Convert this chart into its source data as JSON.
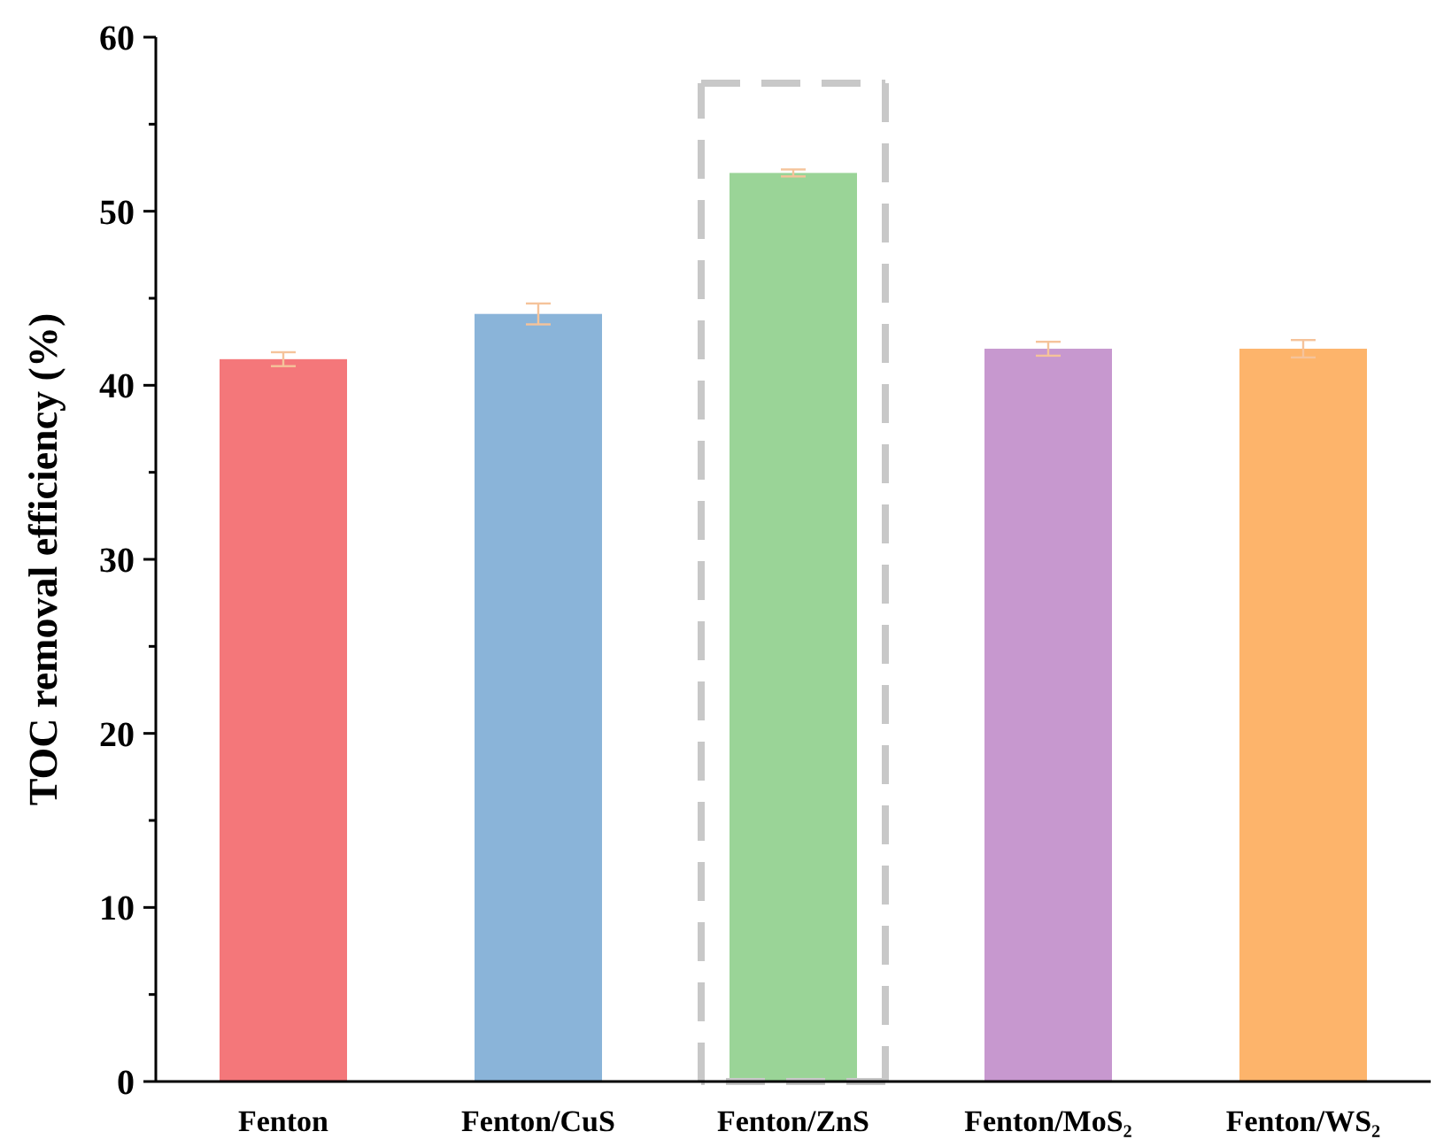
{
  "chart_data": {
    "type": "bar",
    "ylabel": "TOC removal efficiency (%)",
    "categories": [
      "Fenton",
      "Fenton/CuS",
      "Fenton/ZnS",
      "Fenton/MoS₂",
      "Fenton/WS₂"
    ],
    "values": [
      41.5,
      44.1,
      52.2,
      42.1,
      42.1
    ],
    "colors": [
      "#f4777a",
      "#8ab4d9",
      "#9ad497",
      "#c798cf",
      "#fdb46b"
    ],
    "errors": [
      0.4,
      0.6,
      0.2,
      0.4,
      0.5
    ],
    "ylim": [
      0,
      60
    ],
    "yticks": [
      0,
      {
        "value": 5,
        "label": null
      },
      10,
      {
        "value": 15,
        "label": null
      },
      20,
      {
        "value": 25,
        "label": null
      },
      30,
      {
        "value": 35,
        "label": null
      },
      40,
      {
        "value": 45,
        "label": null
      },
      50,
      {
        "value": 55,
        "label": null
      },
      60
    ]
  }
}
